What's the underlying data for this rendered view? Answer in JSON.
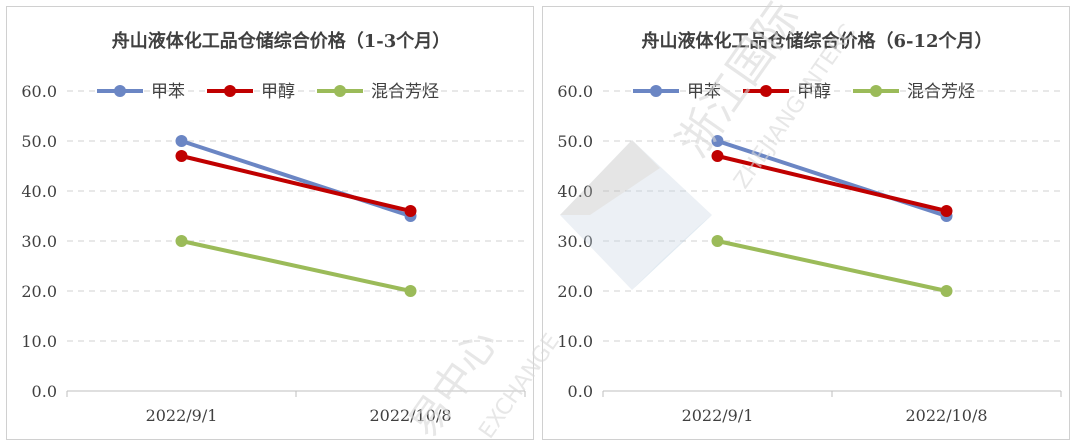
{
  "chart_data": [
    {
      "type": "line",
      "title": "舟山液体化工品仓储综合价格（1-3个月）",
      "categories": [
        "2022/9/1",
        "2022/10/8"
      ],
      "yticks": [
        "0.0",
        "10.0",
        "20.0",
        "30.0",
        "40.0",
        "50.0",
        "60.0"
      ],
      "ylim": [
        0,
        60
      ],
      "grid": true,
      "legend": "top",
      "series": [
        {
          "name": "甲苯",
          "values": [
            50,
            35
          ],
          "color": "#6b86c4"
        },
        {
          "name": "甲醇",
          "values": [
            47,
            36
          ],
          "color": "#c00000"
        },
        {
          "name": "混合芳烃",
          "values": [
            30,
            20
          ],
          "color": "#9bbb59"
        }
      ]
    },
    {
      "type": "line",
      "title": "舟山液体化工品仓储综合价格（6-12个月）",
      "categories": [
        "2022/9/1",
        "2022/10/8"
      ],
      "yticks": [
        "0.0",
        "10.0",
        "20.0",
        "30.0",
        "40.0",
        "50.0",
        "60.0"
      ],
      "ylim": [
        0,
        60
      ],
      "grid": true,
      "legend": "top",
      "series": [
        {
          "name": "甲苯",
          "values": [
            50,
            35
          ],
          "color": "#6b86c4"
        },
        {
          "name": "甲醇",
          "values": [
            47,
            36
          ],
          "color": "#c00000"
        },
        {
          "name": "混合芳烃",
          "values": [
            30,
            20
          ],
          "color": "#9bbb59"
        }
      ]
    }
  ],
  "watermark": {
    "text_cn_1": "浙江国际",
    "text_en_1": "ZHEJIANG INTERC",
    "text_cn_2": "易中心",
    "text_en_2": "EXCHANGE"
  }
}
